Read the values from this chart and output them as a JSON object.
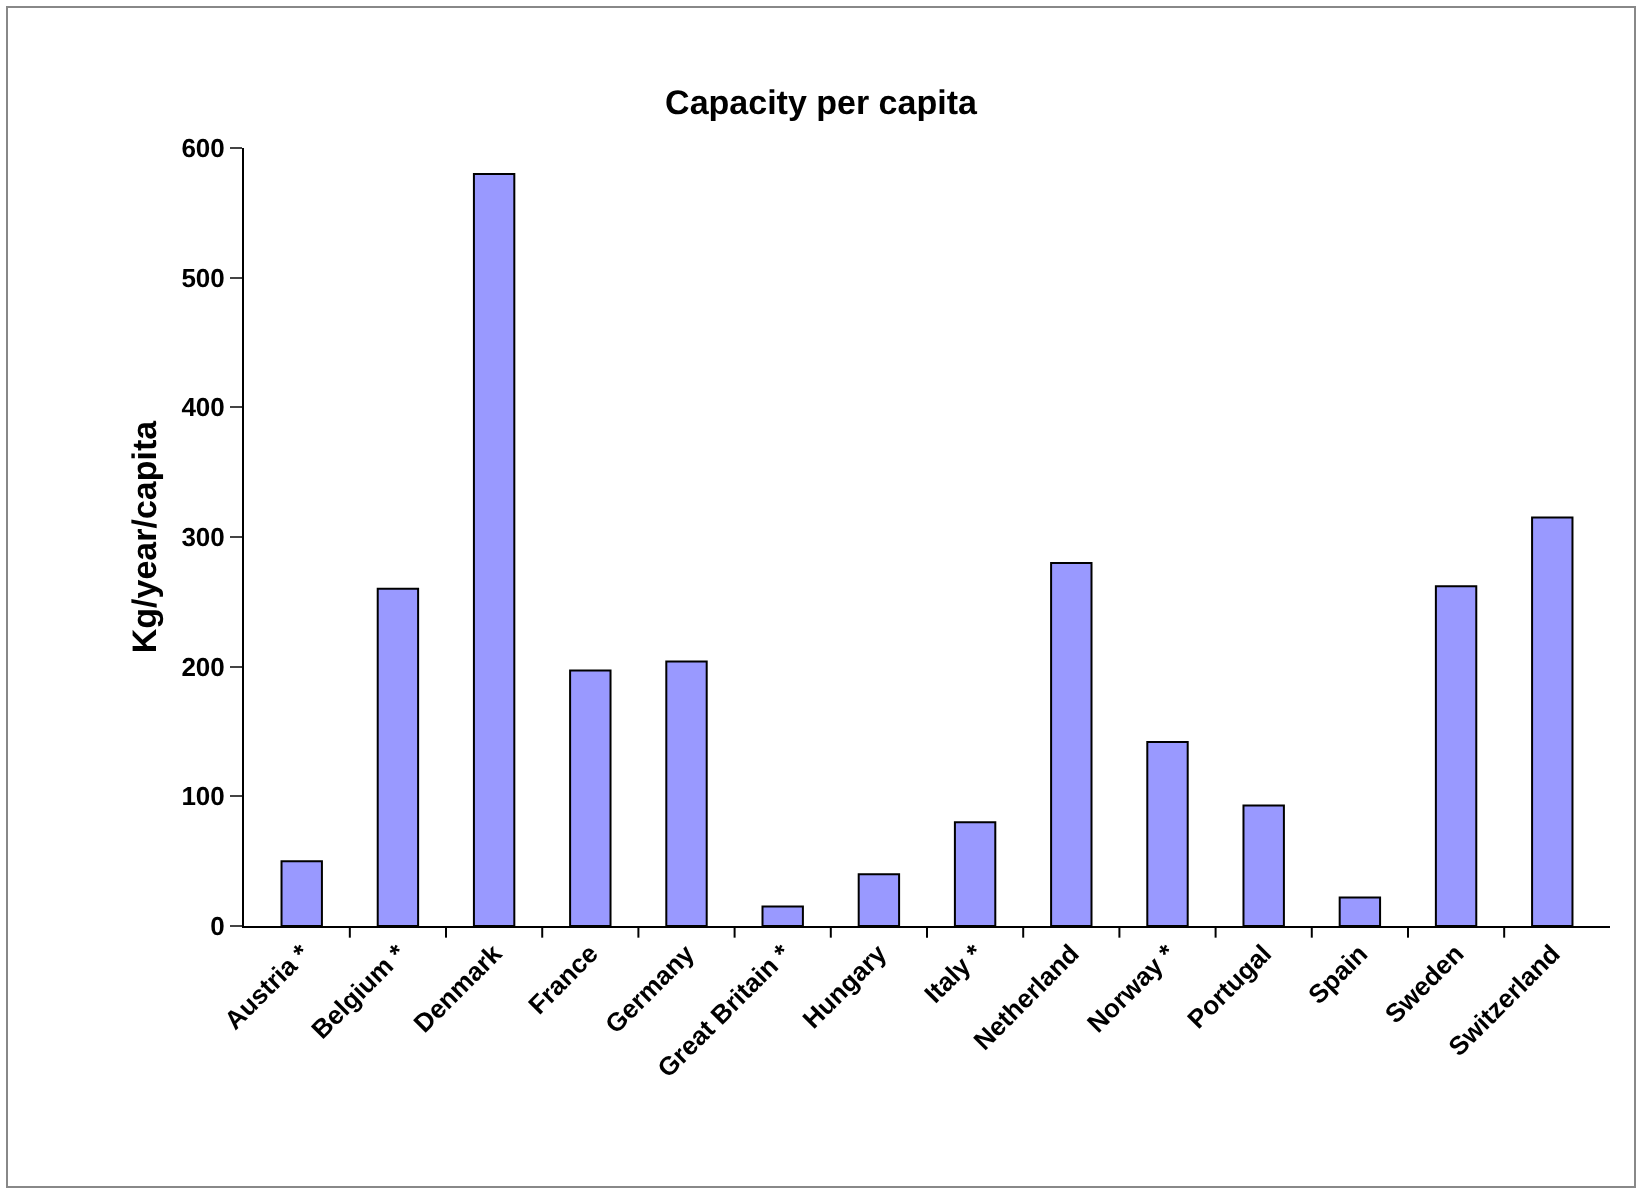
{
  "chart_data": {
    "type": "bar",
    "title": "Capacity per capita",
    "ylabel": "Kg/year/capita",
    "categories": [
      "Austria *",
      "Belgium *",
      "Denmark",
      "France",
      "Germany",
      "Great Britain *",
      "Hungary",
      "Italy *",
      "Netherland",
      "Norway *",
      "Portugal",
      "Spain",
      "Sweden",
      "Switzerland"
    ],
    "values": [
      50,
      260,
      580,
      197,
      204,
      15,
      40,
      80,
      280,
      142,
      93,
      22,
      262,
      315
    ],
    "color": "#9999ff",
    "ylim": [
      0,
      600
    ],
    "yticks": [
      0,
      100,
      200,
      300,
      400,
      500,
      600
    ],
    "grid": false
  }
}
